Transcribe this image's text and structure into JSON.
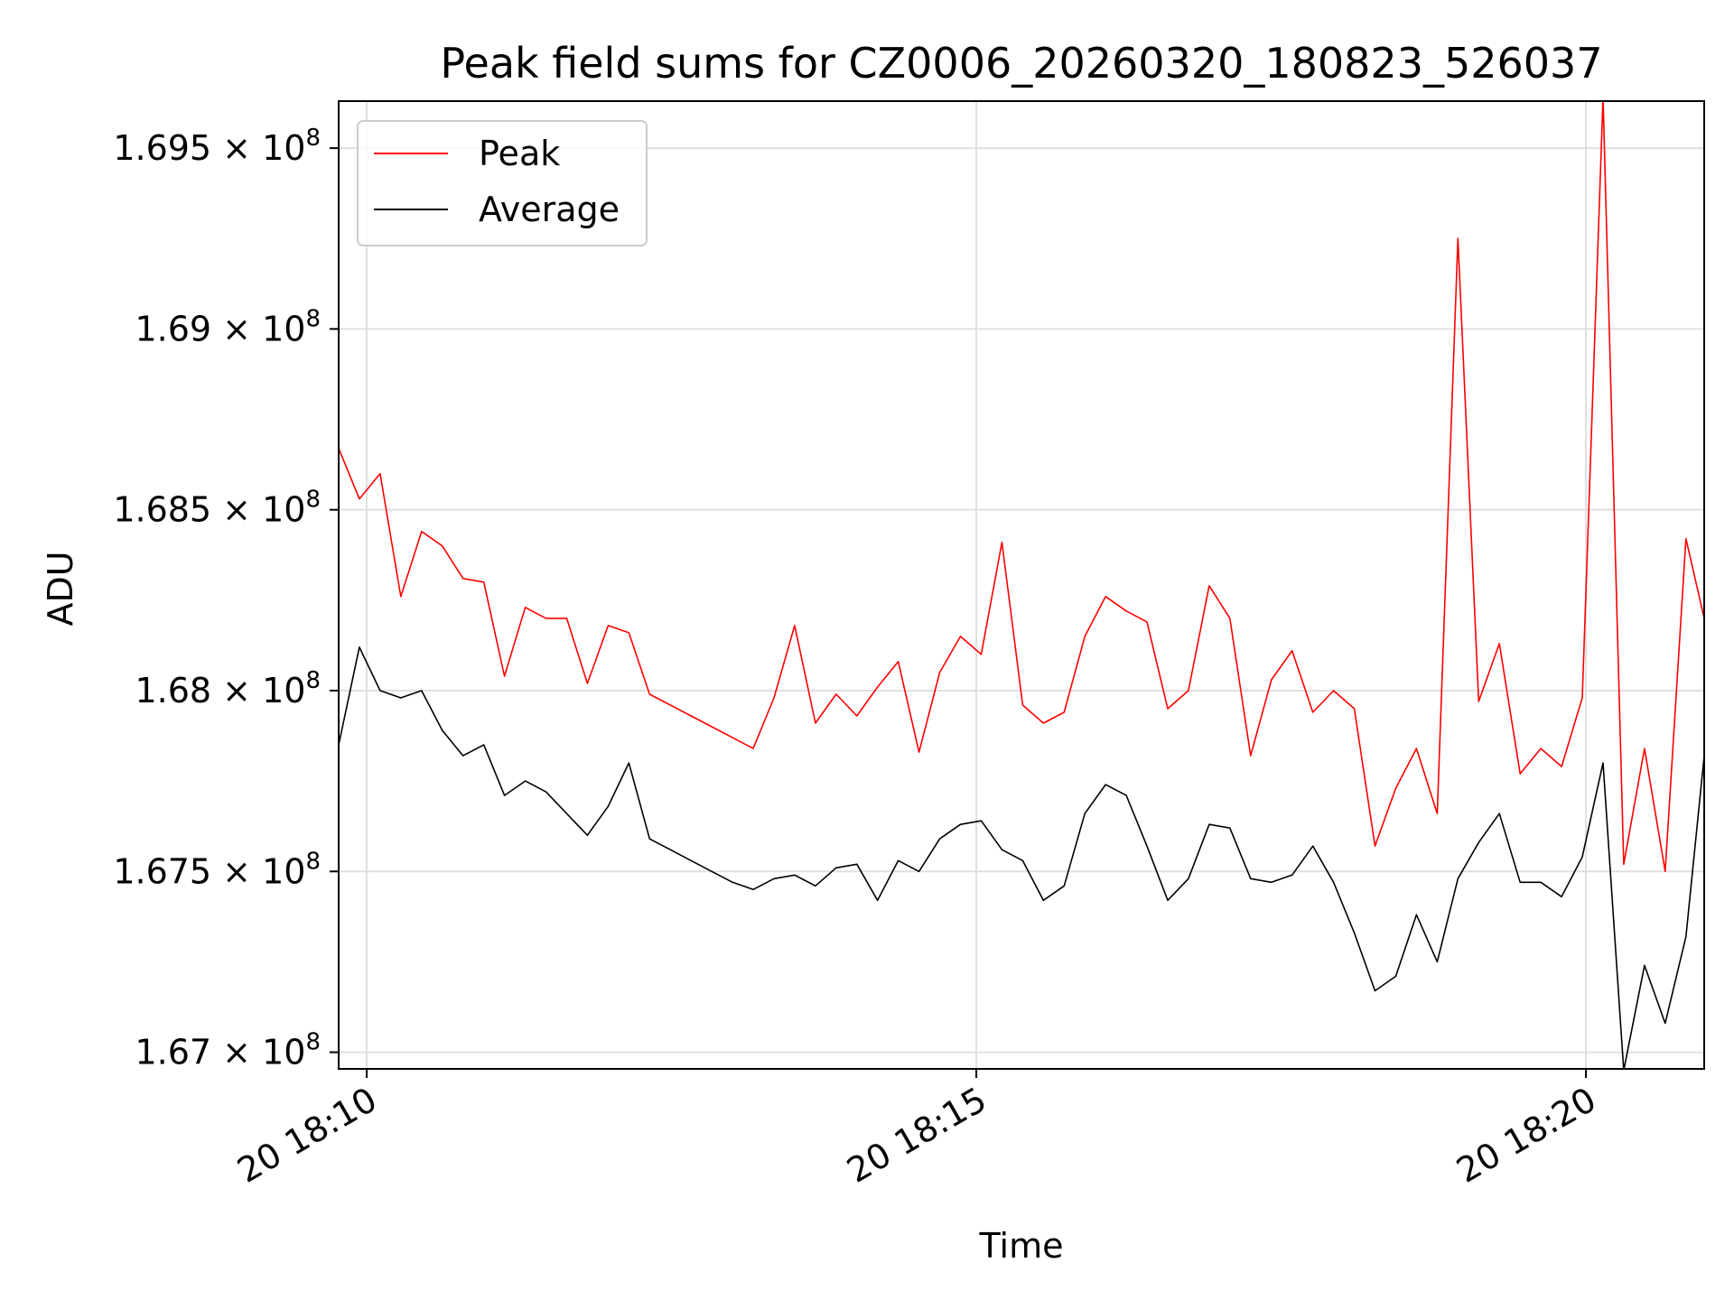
{
  "chart_data": {
    "type": "line",
    "title": "Peak field sums for CZ0006_20260320_180823_526037",
    "xlabel": "Time",
    "ylabel": "ADU",
    "x_ticks": [
      {
        "t": 10,
        "label": "20 18:10"
      },
      {
        "t": 15,
        "label": "20 18:15"
      },
      {
        "t": 20,
        "label": "20 18:20"
      }
    ],
    "y_ticks": [
      {
        "v": 1.67,
        "label": "1.67",
        "exp": "8"
      },
      {
        "v": 1.675,
        "label": "1.675",
        "exp": "8"
      },
      {
        "v": 1.68,
        "label": "1.68",
        "exp": "8"
      },
      {
        "v": 1.685,
        "label": "1.685",
        "exp": "8"
      },
      {
        "v": 1.69,
        "label": "1.69",
        "exp": "8"
      },
      {
        "v": 1.695,
        "label": "1.695",
        "exp": "8"
      }
    ],
    "times_label": "x: minutes after 18:00 on day 20",
    "xlim": [
      9.77,
      20.97
    ],
    "ylim": [
      1.66954,
      1.6963
    ],
    "grid": true,
    "legend_position": "top-left",
    "x": [
      9.77,
      9.94,
      10.11,
      10.28,
      10.45,
      10.62,
      10.79,
      10.96,
      11.13,
      11.3,
      11.47,
      11.64,
      11.81,
      11.98,
      12.15,
      12.32,
      12.49,
      12.66,
      12.83,
      13.0,
      13.17,
      13.34,
      13.51,
      13.68,
      13.85,
      14.02,
      14.19,
      14.36,
      14.53,
      14.7,
      14.87,
      15.04,
      15.21,
      15.38,
      15.55,
      15.72,
      15.89,
      16.06,
      16.23,
      16.4,
      16.57,
      16.74,
      16.91,
      17.08,
      17.25,
      17.42,
      17.59,
      17.76,
      17.93,
      18.1,
      18.27,
      18.44,
      18.61,
      18.78,
      18.95,
      19.12,
      19.29,
      19.46,
      19.63,
      19.8,
      19.97,
      20.14,
      20.31,
      20.48,
      20.65,
      20.82,
      20.97
    ],
    "series": [
      {
        "name": "Peak",
        "color": "#ff0000",
        "values": [
          1.6867,
          1.6853,
          1.686,
          1.6826,
          1.6844,
          1.684,
          1.6831,
          1.683,
          1.6804,
          1.6823,
          1.682,
          1.682,
          1.6802,
          1.6818,
          1.6816,
          1.6799,
          1.6796,
          1.6793,
          1.679,
          1.6787,
          1.6784,
          1.6798,
          1.6818,
          1.6791,
          1.6799,
          1.6793,
          1.6801,
          1.6808,
          1.6783,
          1.6805,
          1.6815,
          1.681,
          1.6841,
          1.6796,
          1.6791,
          1.6794,
          1.6815,
          1.6826,
          1.6822,
          1.6819,
          1.6795,
          1.68,
          1.6829,
          1.682,
          1.6782,
          1.6803,
          1.6811,
          1.6794,
          1.68,
          1.6795,
          1.6757,
          1.6773,
          1.6784,
          1.6766,
          1.6925,
          1.6797,
          1.6813,
          1.6777,
          1.6784,
          1.6779,
          1.6798,
          1.6964,
          1.6752,
          1.6784,
          1.675,
          1.6842,
          1.682
        ]
      },
      {
        "name": "Average",
        "color": "#000000",
        "values": [
          1.6785,
          1.6812,
          1.68,
          1.6798,
          1.68,
          1.6789,
          1.6782,
          1.6785,
          1.6771,
          1.6775,
          1.6772,
          1.6766,
          1.676,
          1.6768,
          1.678,
          1.6759,
          1.6756,
          1.6753,
          1.675,
          1.6747,
          1.6745,
          1.6748,
          1.6749,
          1.6746,
          1.6751,
          1.6752,
          1.6742,
          1.6753,
          1.675,
          1.6759,
          1.6763,
          1.6764,
          1.6756,
          1.6753,
          1.6742,
          1.6746,
          1.6766,
          1.6774,
          1.6771,
          1.6757,
          1.6742,
          1.6748,
          1.6763,
          1.6762,
          1.6748,
          1.6747,
          1.6749,
          1.6757,
          1.6747,
          1.6733,
          1.6717,
          1.6721,
          1.6738,
          1.6725,
          1.6748,
          1.6758,
          1.6766,
          1.6747,
          1.6747,
          1.6743,
          1.6754,
          1.678,
          1.6695,
          1.6724,
          1.6708,
          1.6732,
          1.6782
        ]
      }
    ]
  }
}
